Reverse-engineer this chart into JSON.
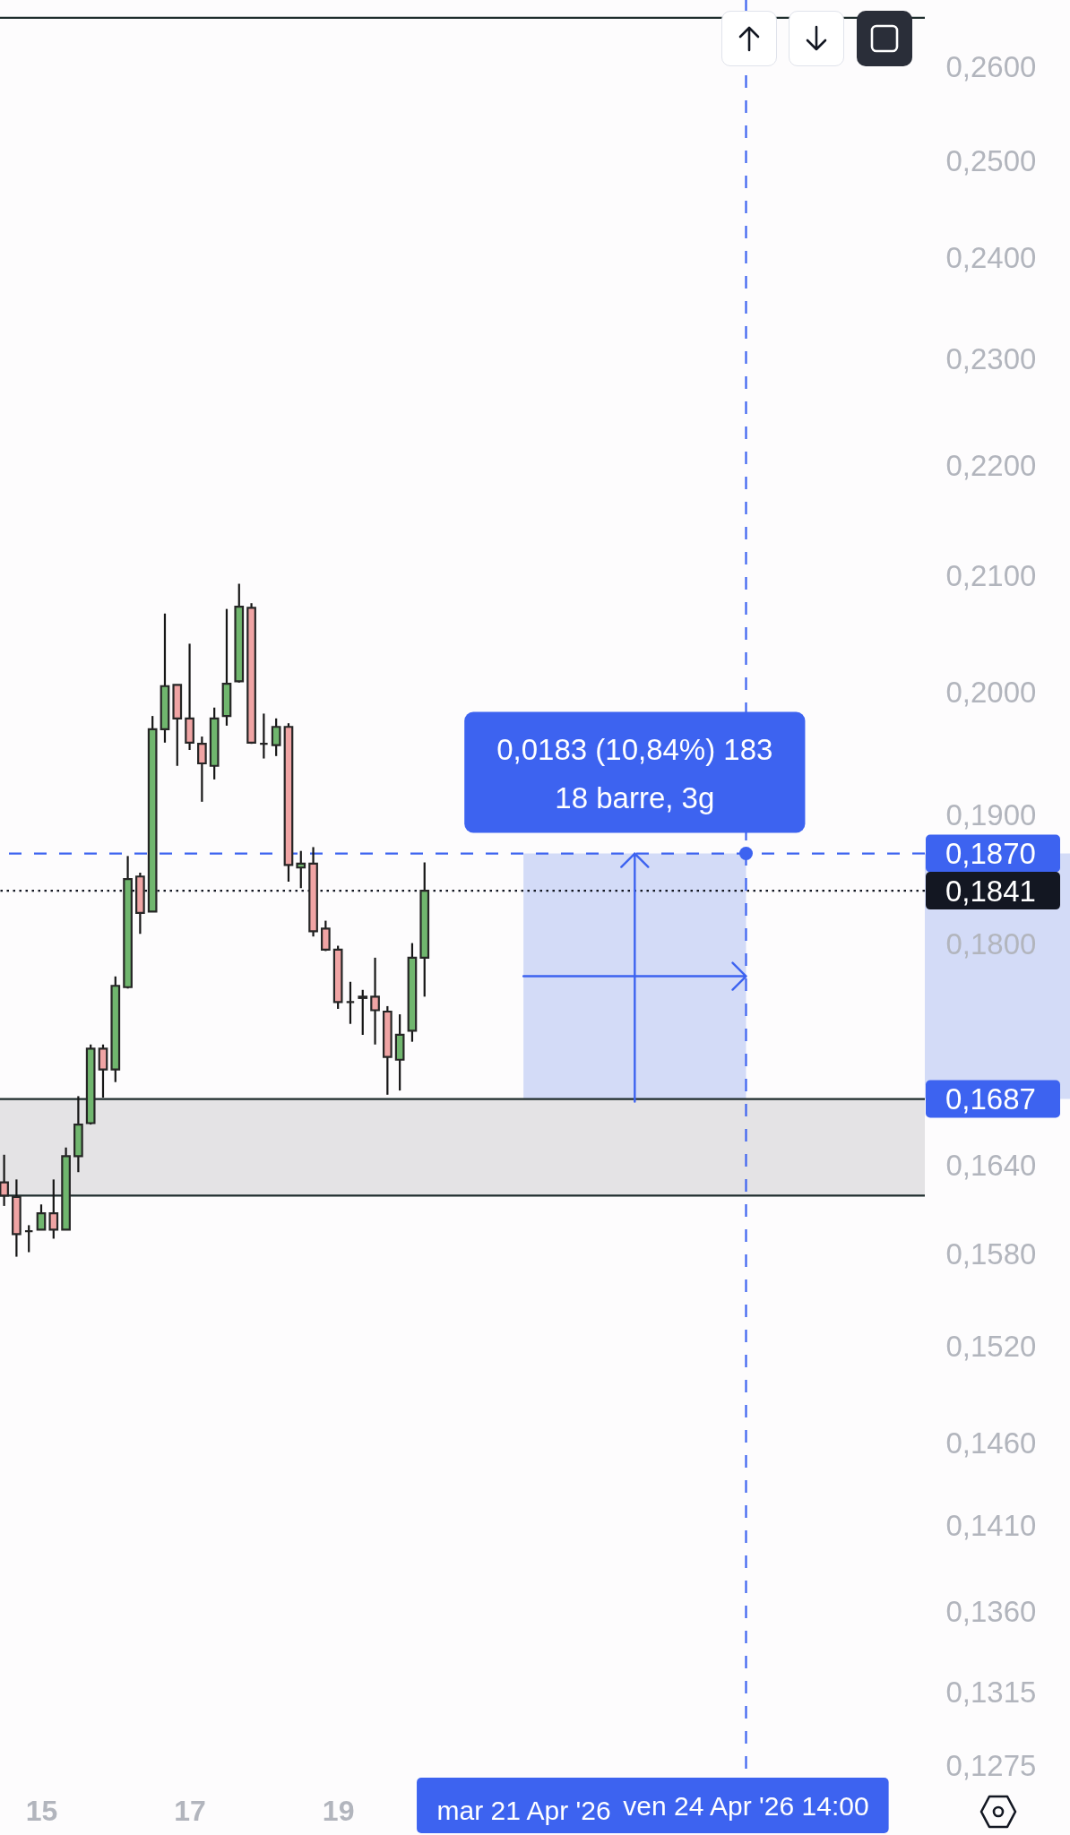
{
  "chart_data": {
    "type": "candlestick",
    "x": [
      "2026-04-14T14:00",
      "2026-04-14T18:00",
      "2026-04-14T22:00",
      "2026-04-15T02:00",
      "2026-04-15T06:00",
      "2026-04-15T10:00",
      "2026-04-15T14:00",
      "2026-04-15T18:00",
      "2026-04-15T22:00",
      "2026-04-16T02:00",
      "2026-04-16T06:00",
      "2026-04-16T10:00",
      "2026-04-16T14:00",
      "2026-04-16T18:00",
      "2026-04-16T22:00",
      "2026-04-17T02:00",
      "2026-04-17T06:00",
      "2026-04-17T10:00",
      "2026-04-17T14:00",
      "2026-04-17T18:00",
      "2026-04-17T22:00",
      "2026-04-18T02:00",
      "2026-04-18T06:00",
      "2026-04-18T10:00",
      "2026-04-18T14:00",
      "2026-04-18T18:00",
      "2026-04-18T22:00",
      "2026-04-19T02:00",
      "2026-04-19T06:00",
      "2026-04-19T10:00",
      "2026-04-19T14:00",
      "2026-04-19T18:00",
      "2026-04-19T22:00",
      "2026-04-20T02:00",
      "2026-04-20T06:00"
    ],
    "ohlc": [
      [
        0.1629,
        0.1648,
        0.1613,
        0.162
      ],
      [
        0.1619,
        0.1631,
        0.1579,
        0.1594
      ],
      [
        0.1596,
        0.16,
        0.1582,
        0.1596
      ],
      [
        0.1597,
        0.1614,
        0.1597,
        0.1608
      ],
      [
        0.1608,
        0.1631,
        0.1591,
        0.1597
      ],
      [
        0.1597,
        0.1653,
        0.1597,
        0.1647
      ],
      [
        0.1647,
        0.1689,
        0.1636,
        0.1669
      ],
      [
        0.167,
        0.1726,
        0.1669,
        0.1723
      ],
      [
        0.1723,
        0.1726,
        0.1688,
        0.1708
      ],
      [
        0.1708,
        0.1776,
        0.1699,
        0.1769
      ],
      [
        0.1768,
        0.1868,
        0.1767,
        0.185
      ],
      [
        0.1852,
        0.1855,
        0.1808,
        0.1824
      ],
      [
        0.1825,
        0.1981,
        0.1825,
        0.197
      ],
      [
        0.197,
        0.2068,
        0.1959,
        0.2006
      ],
      [
        0.2007,
        0.2007,
        0.194,
        0.1979
      ],
      [
        0.1979,
        0.2042,
        0.1953,
        0.1959
      ],
      [
        0.1958,
        0.1964,
        0.1911,
        0.1942
      ],
      [
        0.194,
        0.1988,
        0.1929,
        0.1979
      ],
      [
        0.1981,
        0.2072,
        0.1973,
        0.2008
      ],
      [
        0.201,
        0.2094,
        0.2009,
        0.2074
      ],
      [
        0.2073,
        0.2077,
        0.1958,
        0.1959
      ],
      [
        0.1958,
        0.1983,
        0.1946,
        0.1958
      ],
      [
        0.1957,
        0.1979,
        0.1948,
        0.1972
      ],
      [
        0.1972,
        0.1975,
        0.1848,
        0.1861
      ],
      [
        0.1859,
        0.1872,
        0.1843,
        0.1862
      ],
      [
        0.1862,
        0.1875,
        0.1806,
        0.181
      ],
      [
        0.1812,
        0.1818,
        0.1795,
        0.1796
      ],
      [
        0.1796,
        0.1799,
        0.1752,
        0.1757
      ],
      [
        0.1757,
        0.1772,
        0.1741,
        0.1757
      ],
      [
        0.1761,
        0.1766,
        0.1733,
        0.176
      ],
      [
        0.1761,
        0.179,
        0.1726,
        0.1751
      ],
      [
        0.175,
        0.1754,
        0.169,
        0.1717
      ],
      [
        0.1715,
        0.1748,
        0.1693,
        0.1733
      ],
      [
        0.1736,
        0.1801,
        0.1728,
        0.179
      ],
      [
        0.179,
        0.1863,
        0.1761,
        0.1841
      ]
    ],
    "colors": [
      "#f0a4a4",
      "#f0a4a4",
      "#262626",
      "#70b66e",
      "#f0a4a4",
      "#70b66e",
      "#70b66e",
      "#70b66e",
      "#f0a4a4",
      "#70b66e",
      "#70b66e",
      "#f0a4a4",
      "#70b66e",
      "#70b66e",
      "#f0a4a4",
      "#f0a4a4",
      "#f0a4a4",
      "#70b66e",
      "#70b66e",
      "#70b66e",
      "#f0a4a4",
      "#262626",
      "#70b66e",
      "#f0a4a4",
      "#70b66e",
      "#f0a4a4",
      "#f0a4a4",
      "#f0a4a4",
      "#262626",
      "#f0a4a4",
      "#f0a4a4",
      "#f0a4a4",
      "#70b66e",
      "#70b66e",
      "#70b66e"
    ],
    "xlim": [
      "2026-04-14T12:40",
      "2026-04-26T23:50"
    ],
    "xticks": [
      {
        "value": "2026-04-15T02:00",
        "label": "15"
      },
      {
        "value": "2026-04-17T02:00",
        "label": "17"
      },
      {
        "value": "2026-04-19T02:00",
        "label": "19"
      },
      {
        "value": "2026-04-21T14:00",
        "label": "mar 21 Apr '26"
      }
    ],
    "ylim": [
      0.127,
      0.2675
    ],
    "log": true,
    "yticks": [
      {
        "value": 0.26,
        "label": "0,2600"
      },
      {
        "value": 0.25,
        "label": "0,2500"
      },
      {
        "value": 0.24,
        "label": "0,2400"
      },
      {
        "value": 0.23,
        "label": "0,2300"
      },
      {
        "value": 0.22,
        "label": "0,2200"
      },
      {
        "value": 0.21,
        "label": "0,2100"
      },
      {
        "value": 0.2,
        "label": "0,2000"
      },
      {
        "value": 0.19,
        "label": "0,1900"
      },
      {
        "value": 0.18,
        "label": "0,1800"
      },
      {
        "value": 0.164,
        "label": "0,1640"
      },
      {
        "value": 0.158,
        "label": "0,1580"
      },
      {
        "value": 0.152,
        "label": "0,1520"
      },
      {
        "value": 0.146,
        "label": "0,1460"
      },
      {
        "value": 0.141,
        "label": "0,1410"
      },
      {
        "value": 0.136,
        "label": "0,1360"
      },
      {
        "value": 0.1315,
        "label": "0,1315"
      },
      {
        "value": 0.1275,
        "label": "0,1275"
      }
    ],
    "bands": [
      {
        "axis": "y",
        "from": 0.162,
        "to": 0.1687,
        "color": "#e4e3e5",
        "label": "0,1687"
      },
      {
        "axis": "x",
        "from": "2026-04-21T14:00",
        "to": "2026-04-24T14:00",
        "color": "#d3dbf7"
      }
    ],
    "ref_lines": [
      {
        "axis": "y",
        "value": 0.2655,
        "color": "#1f2d2d"
      },
      {
        "axis": "y",
        "value": 0.1687,
        "color": "#1f2d2d"
      },
      {
        "axis": "y",
        "value": 0.162,
        "color": "#1f2d2d"
      },
      {
        "axis": "y",
        "value": 0.187,
        "label": "0,1870",
        "color": "#3d63f0",
        "line_style": "dashed"
      },
      {
        "axis": "y",
        "value": 0.1841,
        "label": "0,1841",
        "color": "#131722",
        "line_style": "dotted"
      },
      {
        "axis": "x",
        "value": "2026-04-24T14:00",
        "label": "ven 24 Apr '26 14:00",
        "color": "#3d63f0",
        "line_style": "dashed"
      }
    ],
    "annotations": [
      "0,0183 (10,84%) 183",
      "18 barre, 3g"
    ]
  }
}
